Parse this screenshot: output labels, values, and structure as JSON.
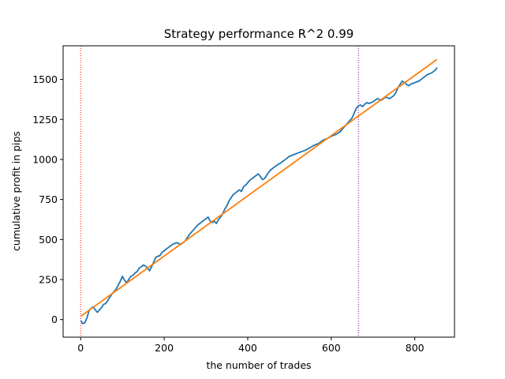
{
  "chart_data": {
    "type": "line",
    "title": "Strategy performance R^2 0.99",
    "xlabel": "the number of trades",
    "ylabel": "cumulative profit in pips",
    "xlim": [
      -42,
      895
    ],
    "ylim": [
      -110,
      1710
    ],
    "xticks": [
      0,
      200,
      400,
      600,
      800
    ],
    "yticks": [
      0,
      250,
      500,
      750,
      1000,
      1250,
      1500
    ],
    "grid": false,
    "legend": "none",
    "vlines": [
      {
        "x": 0,
        "color": "#ff0000",
        "style": "dotted"
      },
      {
        "x": 665,
        "color": "#800080",
        "style": "dotted"
      }
    ],
    "series": [
      {
        "color": "#1f77b4",
        "kind": "profit",
        "x": [
          0,
          5,
          10,
          15,
          20,
          25,
          30,
          35,
          40,
          45,
          50,
          55,
          60,
          65,
          70,
          75,
          80,
          85,
          90,
          95,
          100,
          105,
          110,
          115,
          120,
          125,
          130,
          135,
          140,
          145,
          150,
          155,
          160,
          165,
          170,
          175,
          180,
          185,
          190,
          195,
          200,
          210,
          220,
          230,
          240,
          250,
          260,
          270,
          280,
          290,
          300,
          305,
          310,
          315,
          320,
          325,
          330,
          335,
          340,
          345,
          350,
          355,
          360,
          365,
          370,
          375,
          380,
          385,
          390,
          395,
          400,
          405,
          410,
          415,
          420,
          425,
          430,
          435,
          440,
          445,
          450,
          455,
          460,
          470,
          480,
          490,
          500,
          510,
          520,
          530,
          540,
          550,
          560,
          570,
          580,
          590,
          600,
          610,
          620,
          630,
          640,
          650,
          655,
          660,
          665,
          670,
          675,
          680,
          685,
          690,
          700,
          710,
          720,
          730,
          740,
          750,
          755,
          760,
          765,
          770,
          775,
          780,
          785,
          790,
          800,
          810,
          820,
          830,
          840,
          850,
          853
        ],
        "y": [
          -5,
          -25,
          -20,
          10,
          55,
          70,
          80,
          60,
          45,
          60,
          75,
          95,
          100,
          120,
          140,
          160,
          175,
          190,
          215,
          240,
          270,
          245,
          230,
          250,
          270,
          275,
          290,
          300,
          320,
          330,
          340,
          335,
          320,
          305,
          330,
          360,
          390,
          395,
          400,
          420,
          430,
          450,
          470,
          480,
          470,
          490,
          530,
          560,
          590,
          610,
          630,
          640,
          615,
          605,
          615,
          600,
          625,
          640,
          660,
          690,
          710,
          740,
          760,
          780,
          790,
          800,
          810,
          800,
          830,
          840,
          855,
          870,
          880,
          890,
          900,
          910,
          895,
          875,
          880,
          900,
          920,
          935,
          945,
          965,
          980,
          1000,
          1020,
          1030,
          1040,
          1050,
          1060,
          1075,
          1090,
          1100,
          1120,
          1130,
          1145,
          1155,
          1170,
          1200,
          1230,
          1260,
          1290,
          1320,
          1335,
          1340,
          1330,
          1345,
          1355,
          1350,
          1360,
          1380,
          1370,
          1390,
          1380,
          1400,
          1420,
          1450,
          1470,
          1490,
          1480,
          1470,
          1460,
          1470,
          1480,
          1490,
          1510,
          1530,
          1540,
          1560,
          1575
        ]
      },
      {
        "color": "#ff7f0e",
        "kind": "fit",
        "x": [
          0,
          853
        ],
        "y": [
          20,
          1625
        ]
      }
    ]
  }
}
